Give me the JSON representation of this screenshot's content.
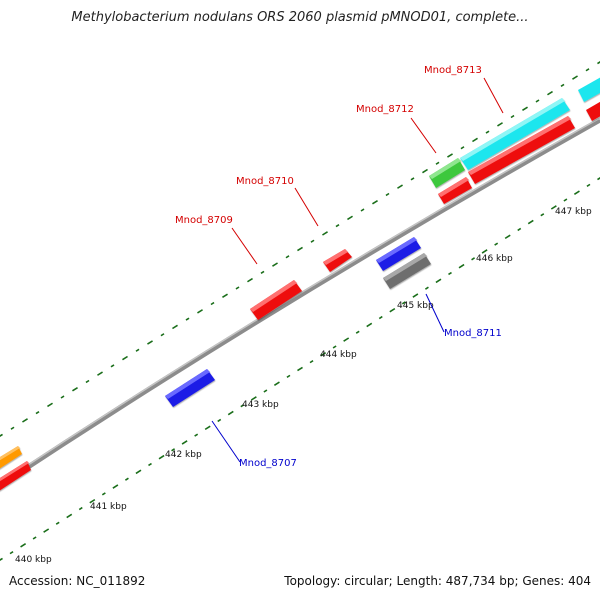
{
  "title": "Methylobacterium nodulans ORS 2060 plasmid pMNOD01, complete...",
  "footer": {
    "accession": "Accession: NC_011892",
    "summary": "Topology: circular; Length: 487,734 bp; Genes: 404"
  },
  "colors": {
    "backbone": "#8c8c8c",
    "tick": "#1a6e1a",
    "label_red": "#d40000",
    "label_blue": "#0000cc",
    "gene_red": "#ee1111",
    "gene_blue": "#1a1ae6",
    "gene_cyan": "#1ee6ee",
    "gene_green": "#3cc83c",
    "gene_gray": "#6e6e6e",
    "gene_orange": "#ff9900"
  },
  "scale_labels": [
    "440 kbp",
    "441 kbp",
    "442 kbp",
    "443 kbp",
    "444 kbp",
    "445 kbp",
    "446 kbp",
    "447 kbp"
  ],
  "gene_labels": [
    {
      "name": "Mnod_8713",
      "color": "red"
    },
    {
      "name": "Mnod_8712",
      "color": "red"
    },
    {
      "name": "Mnod_8710",
      "color": "red"
    },
    {
      "name": "Mnod_8709",
      "color": "red"
    },
    {
      "name": "Mnod_8711",
      "color": "blue"
    },
    {
      "name": "Mnod_8707",
      "color": "blue"
    }
  ]
}
